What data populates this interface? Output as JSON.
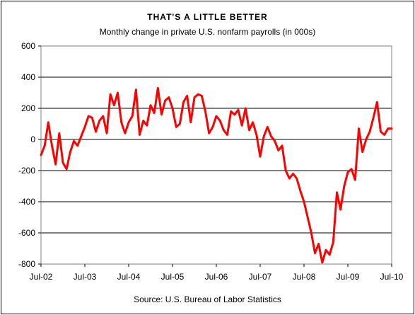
{
  "chart_data": {
    "type": "line",
    "title": "THAT'S A LITTLE BETTER",
    "subtitle": "Monthly change in private U.S. nonfarm payrolls (in 000s)",
    "source": "Source: U.S. Bureau of Labor Statistics",
    "xlabel": "",
    "ylabel": "",
    "ylim": [
      -800,
      600
    ],
    "yticks": [
      -800,
      -600,
      -400,
      -200,
      0,
      200,
      400,
      600
    ],
    "ytick_labels": [
      "-800",
      "-600",
      "-400",
      "-200",
      "0",
      "200",
      "400",
      "600"
    ],
    "x_range": [
      "Jul-02",
      "Jul-10"
    ],
    "xtick_labels": [
      "Jul-02",
      "Jul-03",
      "Jul-04",
      "Jul-05",
      "Jul-06",
      "Jul-07",
      "Jul-08",
      "Jul-09",
      "Jul-10"
    ],
    "grid": "horizontal",
    "line_color": "#ff0000",
    "series": [
      {
        "x": [
          "2002-07",
          "2002-08",
          "2002-09",
          "2002-10",
          "2002-11",
          "2002-12",
          "2003-01",
          "2003-02",
          "2003-03",
          "2003-04",
          "2003-05",
          "2003-06",
          "2003-07",
          "2003-08",
          "2003-09",
          "2003-10",
          "2003-11",
          "2003-12",
          "2004-01",
          "2004-02",
          "2004-03",
          "2004-04",
          "2004-05",
          "2004-06",
          "2004-07",
          "2004-08",
          "2004-09",
          "2004-10",
          "2004-11",
          "2004-12",
          "2005-01",
          "2005-02",
          "2005-03",
          "2005-04",
          "2005-05",
          "2005-06",
          "2005-07",
          "2005-08",
          "2005-09",
          "2005-10",
          "2005-11",
          "2005-12",
          "2006-01",
          "2006-02",
          "2006-03",
          "2006-04",
          "2006-05",
          "2006-06",
          "2006-07",
          "2006-08",
          "2006-09",
          "2006-10",
          "2006-11",
          "2006-12",
          "2007-01",
          "2007-02",
          "2007-03",
          "2007-04",
          "2007-05",
          "2007-06",
          "2007-07",
          "2007-08",
          "2007-09",
          "2007-10",
          "2007-11",
          "2007-12",
          "2008-01",
          "2008-02",
          "2008-03",
          "2008-04",
          "2008-05",
          "2008-06",
          "2008-07",
          "2008-08",
          "2008-09",
          "2008-10",
          "2008-11",
          "2008-12",
          "2009-01",
          "2009-02",
          "2009-03",
          "2009-04",
          "2009-05",
          "2009-06",
          "2009-07",
          "2009-08",
          "2009-09",
          "2009-10",
          "2009-11",
          "2009-12",
          "2010-01",
          "2010-02",
          "2010-03",
          "2010-04",
          "2010-05",
          "2010-06",
          "2010-07"
        ],
        "values": [
          -100,
          -40,
          110,
          -40,
          -160,
          40,
          -150,
          -190,
          -80,
          -10,
          -40,
          20,
          80,
          150,
          140,
          50,
          120,
          150,
          40,
          290,
          220,
          300,
          110,
          40,
          110,
          150,
          320,
          30,
          120,
          90,
          220,
          170,
          330,
          160,
          250,
          270,
          200,
          80,
          100,
          240,
          280,
          110,
          270,
          290,
          280,
          180,
          40,
          80,
          150,
          120,
          60,
          30,
          180,
          160,
          190,
          90,
          200,
          60,
          110,
          30,
          -110,
          20,
          80,
          20,
          -10,
          -70,
          -40,
          -200,
          -250,
          -220,
          -250,
          -330,
          -400,
          -500,
          -600,
          -730,
          -670,
          -790,
          -710,
          -740,
          -660,
          -340,
          -450,
          -300,
          -210,
          -190,
          -260,
          70,
          -80,
          0,
          50,
          140,
          240,
          50,
          30,
          70,
          70
        ]
      }
    ]
  }
}
